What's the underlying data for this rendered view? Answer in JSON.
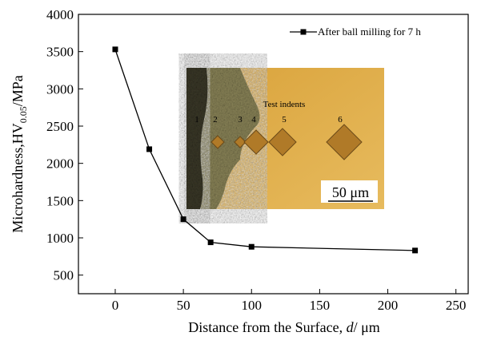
{
  "chart_data": {
    "type": "line",
    "x_label": [
      "Distance from the Surface, ",
      "d",
      "/ μm"
    ],
    "y_label": [
      "Microhardness,HV",
      "0.05",
      "/MPa"
    ],
    "x": [
      0,
      25,
      50,
      70,
      100,
      220
    ],
    "series": [
      {
        "name": "After ball milling for 7 h",
        "color": "#000000",
        "values": [
          3530,
          2190,
          1250,
          940,
          880,
          830
        ]
      }
    ],
    "xlim": [
      -27,
      259
    ],
    "xticks": [
      0,
      50,
      100,
      150,
      200,
      250
    ],
    "ylim": [
      250,
      4000
    ],
    "yticks": [
      500,
      1000,
      1500,
      2000,
      2500,
      3000,
      3500,
      4000
    ],
    "grid": false,
    "legend": "upper right",
    "inset": {
      "caption": "Test indents",
      "indent_labels": [
        "1",
        "2",
        "3",
        "4",
        "5",
        "6"
      ],
      "scale_bar": "50 μm"
    }
  }
}
